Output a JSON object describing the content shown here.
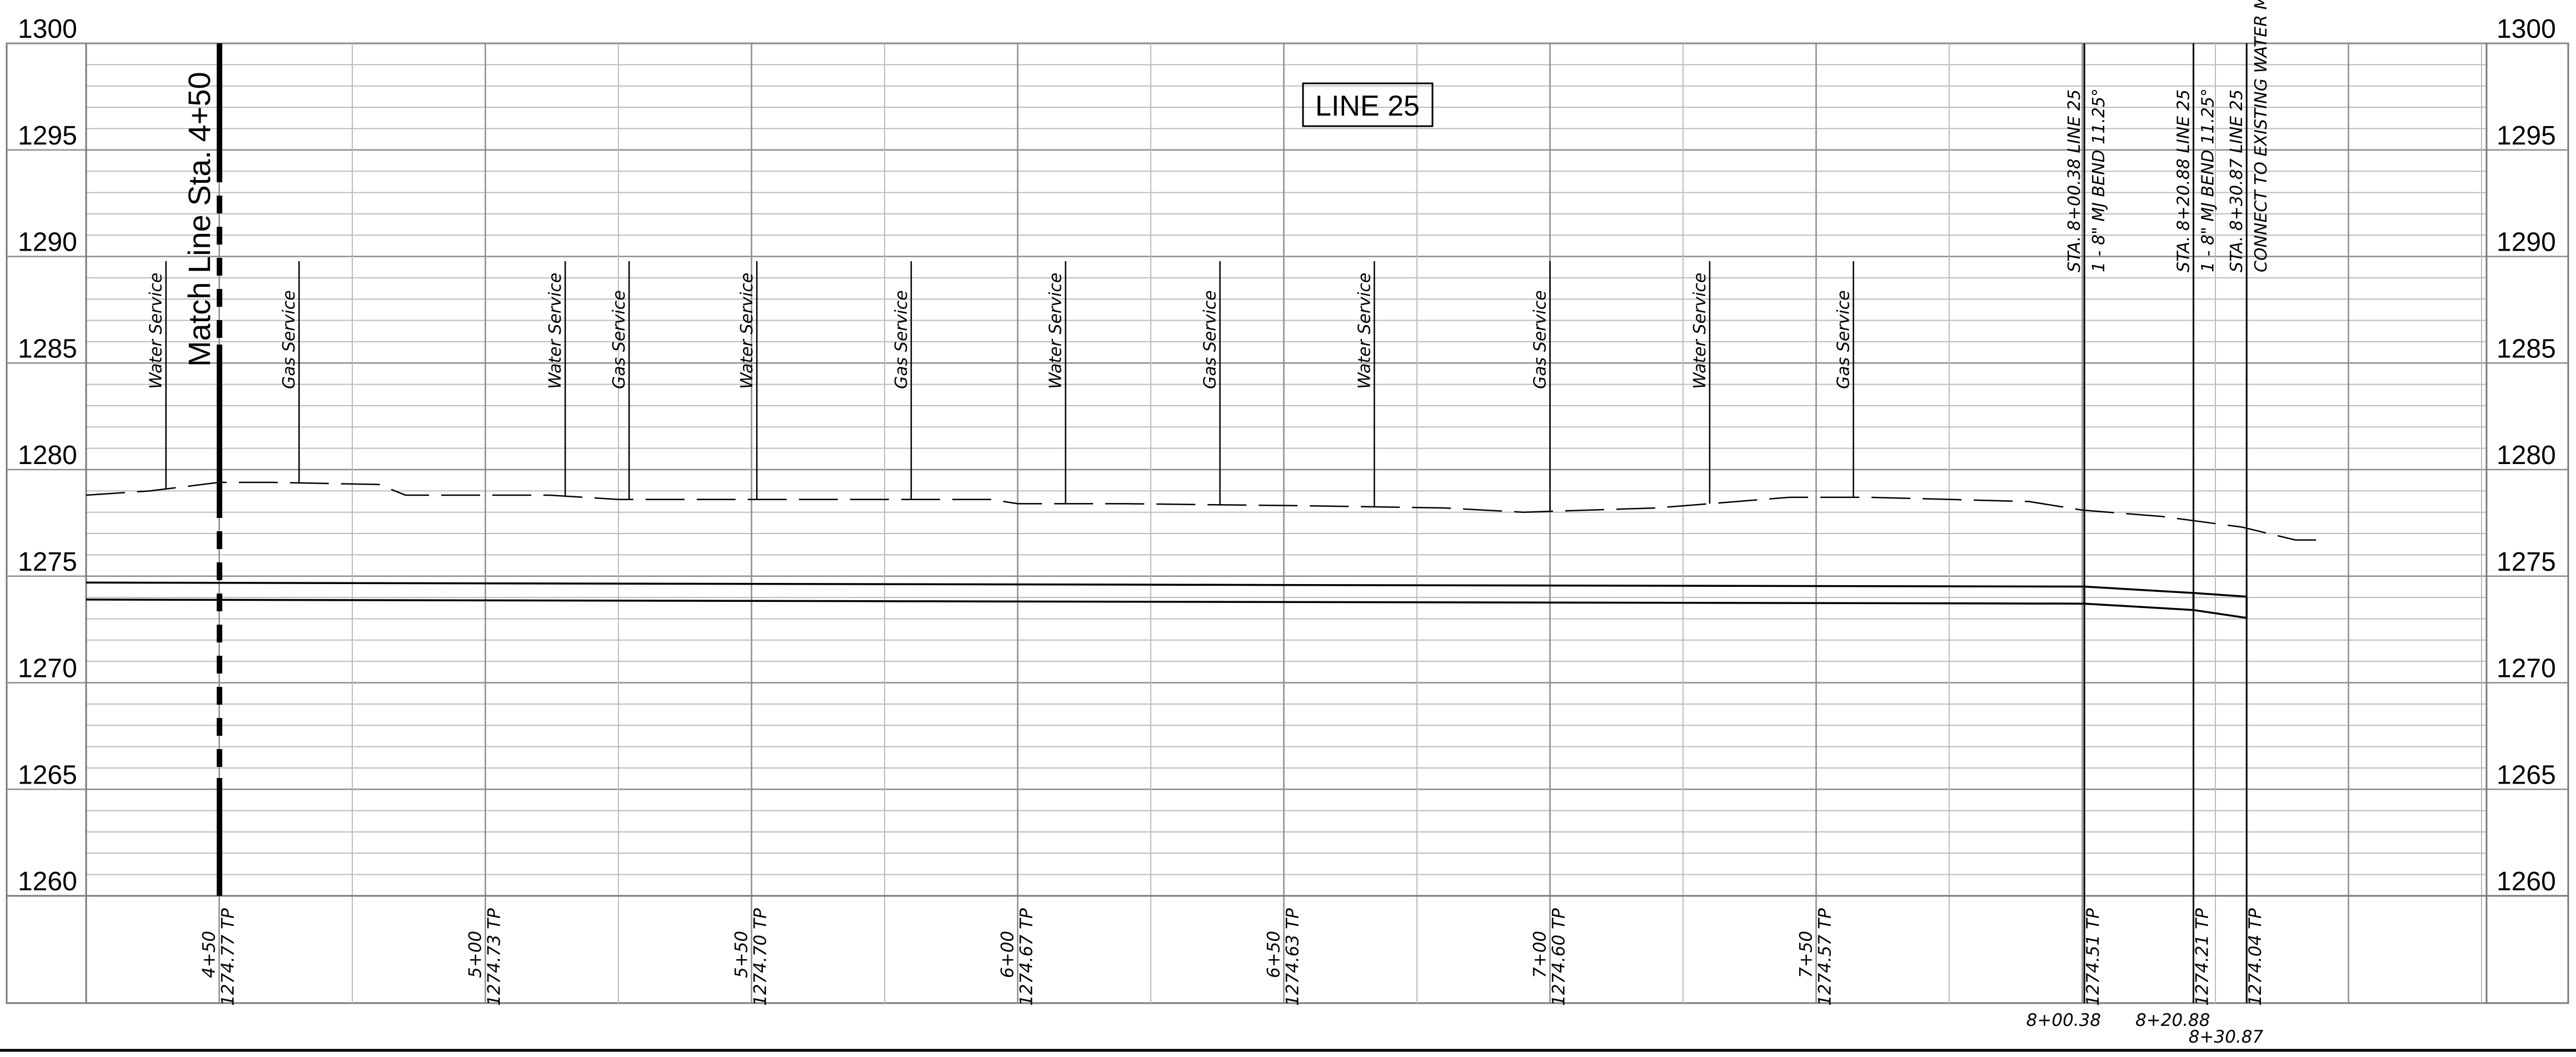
{
  "sheet": {
    "title": "LINE 25",
    "match_line": "Match Line Sta. 4+50"
  },
  "elevations": [
    "1300",
    "1295",
    "1290",
    "1285",
    "1280",
    "1275",
    "1270",
    "1265",
    "1260"
  ],
  "services": [
    {
      "label": "Water Service",
      "sta": 440
    },
    {
      "label": "Gas Service",
      "sta": 465
    },
    {
      "label": "Water Service",
      "sta": 515
    },
    {
      "label": "Gas Service",
      "sta": 527
    },
    {
      "label": "Water Service",
      "sta": 551
    },
    {
      "label": "Gas Service",
      "sta": 580
    },
    {
      "label": "Water Service",
      "sta": 609
    },
    {
      "label": "Gas Service",
      "sta": 638
    },
    {
      "label": "Water Service",
      "sta": 667
    },
    {
      "label": "Gas Service",
      "sta": 700
    },
    {
      "label": "Water Service",
      "sta": 730
    },
    {
      "label": "Gas Service",
      "sta": 757
    }
  ],
  "fittings": [
    {
      "line1": "STA. 8+00.38 LINE 25",
      "line2": "1 - 8\" MJ BEND 11.25°",
      "sta": 800.38
    },
    {
      "line1": "STA. 8+20.88 LINE 25",
      "line2": "1 - 8\" MJ BEND 11.25°",
      "sta": 820.88
    },
    {
      "line1": "STA. 8+30.87 LINE 25",
      "line2": "CONNECT TO EXISTING WATER MAIN",
      "sta": 830.87
    }
  ],
  "profile_stations": [
    {
      "station": "4+50",
      "tp": "1274.77 TP",
      "sta": 450
    },
    {
      "station": "5+00",
      "tp": "1274.73 TP",
      "sta": 500
    },
    {
      "station": "5+50",
      "tp": "1274.70 TP",
      "sta": 550
    },
    {
      "station": "6+00",
      "tp": "1274.67 TP",
      "sta": 600
    },
    {
      "station": "6+50",
      "tp": "1274.63 TP",
      "sta": 650
    },
    {
      "station": "7+00",
      "tp": "1274.60 TP",
      "sta": 700
    },
    {
      "station": "7+50",
      "tp": "1274.57 TP",
      "sta": 750
    }
  ],
  "fitting_stations": [
    {
      "station": "8+00.38",
      "tp": "1274.51 TP",
      "sta": 800.38
    },
    {
      "station": "8+20.88",
      "tp": "1274.21 TP",
      "sta": 820.88
    },
    {
      "station": "8+30.87",
      "tp": "1274.04 TP",
      "sta": 830.87
    }
  ],
  "ground_profile": [
    [
      425,
      1278.8
    ],
    [
      437,
      1279.0
    ],
    [
      450,
      1279.4
    ],
    [
      460,
      1279.4
    ],
    [
      480,
      1279.3
    ],
    [
      485,
      1278.8
    ],
    [
      500,
      1278.8
    ],
    [
      512,
      1278.8
    ],
    [
      525,
      1278.6
    ],
    [
      560,
      1278.6
    ],
    [
      595,
      1278.6
    ],
    [
      600,
      1278.4
    ],
    [
      620,
      1278.4
    ],
    [
      655,
      1278.3
    ],
    [
      680,
      1278.2
    ],
    [
      695,
      1278.0
    ],
    [
      720,
      1278.2
    ],
    [
      745,
      1278.7
    ],
    [
      760,
      1278.7
    ],
    [
      790,
      1278.5
    ],
    [
      800,
      1278.1
    ],
    [
      815,
      1277.8
    ],
    [
      830,
      1277.3
    ],
    [
      840,
      1276.7
    ],
    [
      845,
      1276.7
    ]
  ],
  "pipe_top": [
    [
      425,
      1274.7
    ],
    [
      800.38,
      1274.51
    ],
    [
      820.88,
      1274.21
    ],
    [
      830.87,
      1274.04
    ]
  ],
  "pipe_bottom": [
    [
      425,
      1273.9
    ],
    [
      800.38,
      1273.71
    ],
    [
      820.88,
      1273.41
    ],
    [
      830.87,
      1273.04
    ]
  ],
  "colors": {
    "ink": "#000000",
    "grid": "#bcbcbc",
    "grid_major": "#8c8c8c"
  }
}
